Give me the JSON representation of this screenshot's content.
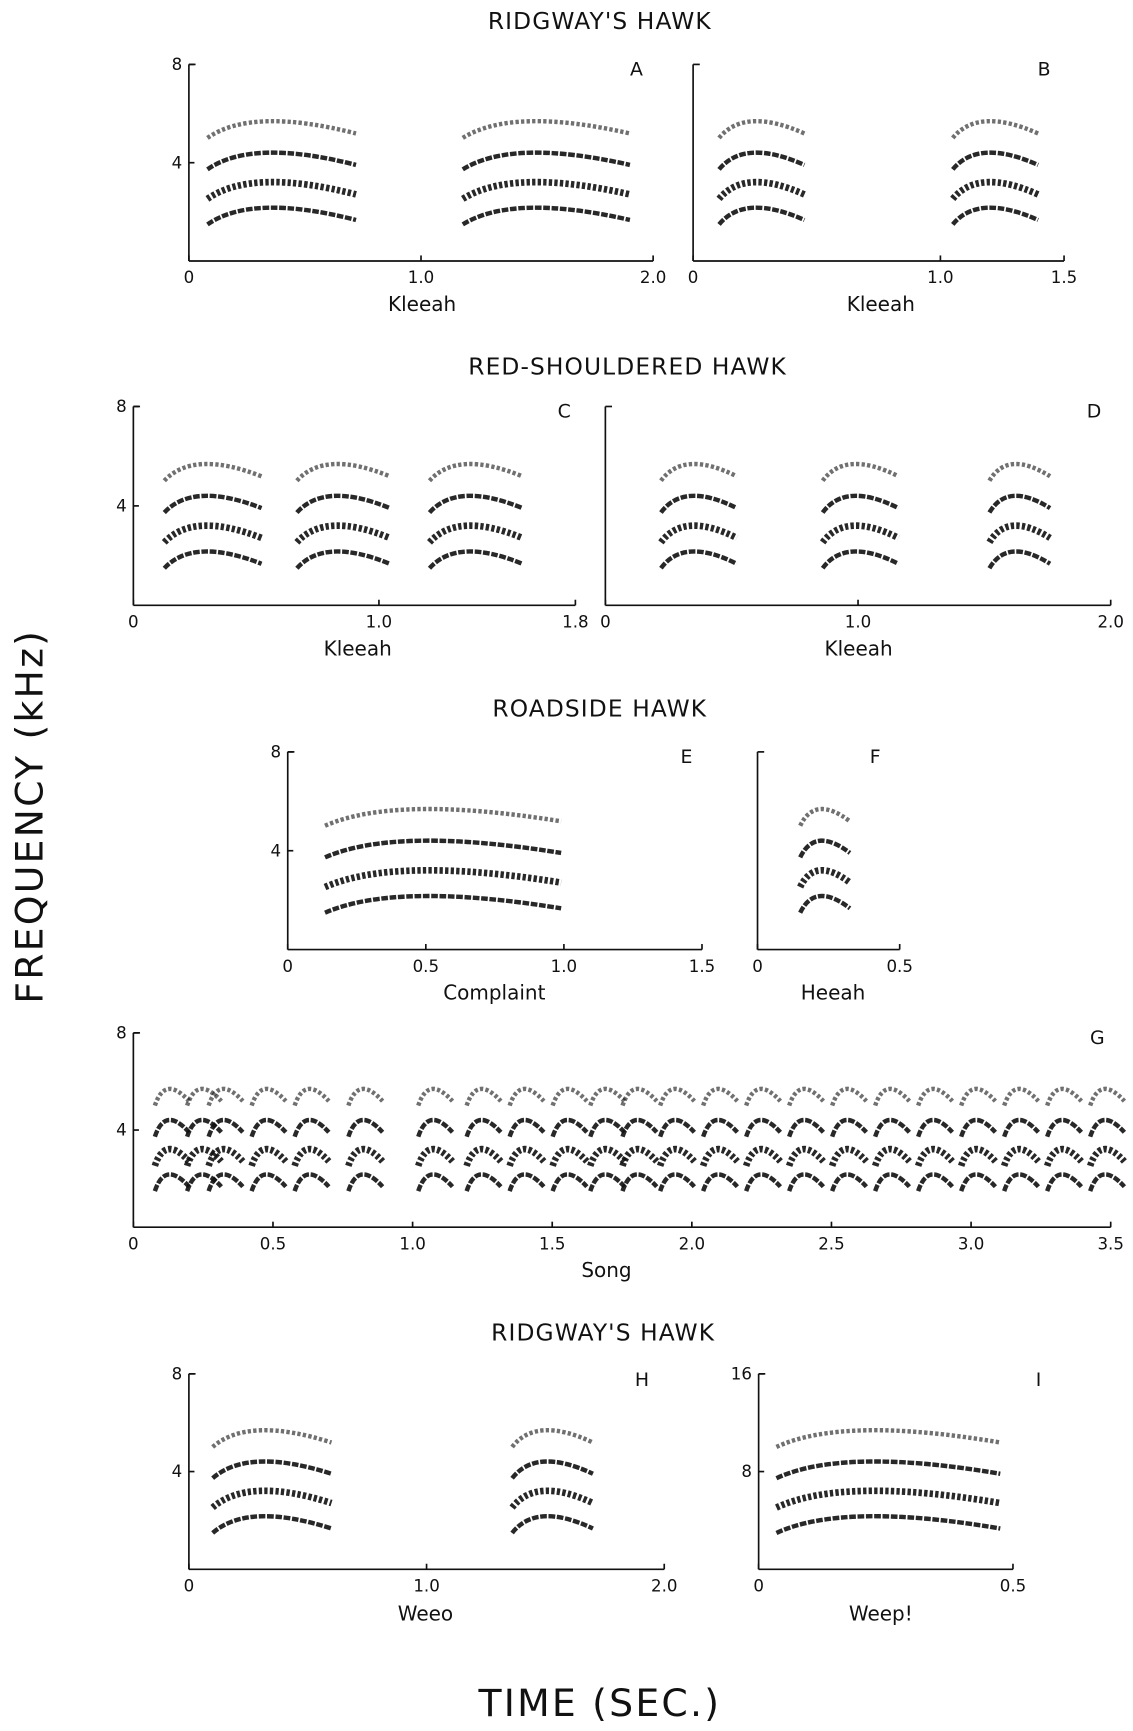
{
  "y_axis_label": "FREQUENCY (kHz)",
  "x_axis_label": "TIME (SEC.)",
  "sections": [
    {
      "title": "RIDGWAY'S HAWK"
    },
    {
      "title": "RED-SHOULDERED HAWK"
    },
    {
      "title": "ROADSIDE HAWK"
    },
    {
      "title": "RIDGWAY'S HAWK"
    }
  ],
  "panels": [
    {
      "letter": "A",
      "call": "Kleeah",
      "xticks": [
        "0",
        "1.0",
        "2.0"
      ],
      "yticks": [
        "8",
        "4"
      ]
    },
    {
      "letter": "B",
      "call": "Kleeah",
      "xticks": [
        "0",
        "1.0",
        "1.5"
      ],
      "yticks": []
    },
    {
      "letter": "C",
      "call": "Kleeah",
      "xticks": [
        "0",
        "1.0",
        "1.8"
      ],
      "yticks": [
        "8",
        "4"
      ]
    },
    {
      "letter": "D",
      "call": "Kleeah",
      "xticks": [
        "0",
        "1.0",
        "2.0"
      ],
      "yticks": []
    },
    {
      "letter": "E",
      "call": "Complaint",
      "xticks": [
        "0",
        "0.5",
        "1.0",
        "1.5"
      ],
      "yticks": [
        "8",
        "4"
      ]
    },
    {
      "letter": "F",
      "call": "Heeah",
      "xticks": [
        "0",
        "0.5"
      ],
      "yticks": []
    },
    {
      "letter": "G",
      "call": "Song",
      "xticks": [
        "0",
        "0.5",
        "1.0",
        "1.5",
        "2.0",
        "2.5",
        "3.0",
        "3.5"
      ],
      "yticks": [
        "8",
        "4"
      ]
    },
    {
      "letter": "H",
      "call": "Weeo",
      "xticks": [
        "0",
        "1.0",
        "2.0"
      ],
      "yticks": [
        "8",
        "4"
      ]
    },
    {
      "letter": "I",
      "call": "Weep!",
      "xticks": [
        "0",
        "0.5"
      ],
      "yticks": [
        "16",
        "8"
      ]
    }
  ]
}
